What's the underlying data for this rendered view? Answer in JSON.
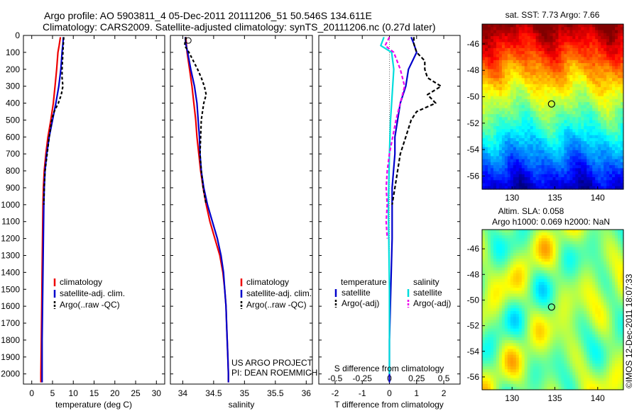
{
  "header": {
    "line1": "Argo profile: AO 5903811_4 05-Dec-2011 20111206_51 50.546S 134.611E",
    "line2": "Climatology: CARS2009. Satellite-adjusted climatology: synTS_20111206.nc (0.27d later)"
  },
  "credits": {
    "project": "US ARGO PROJECT",
    "pi": "PI: DEAN ROEMMICH",
    "stamp": "©IMOS 12-Dec-2011 18:07:33"
  },
  "colors": {
    "climatology": "#ee0000",
    "satellite": "#0000cc",
    "argo": "#000000",
    "salinity_sat": "#00dddd",
    "salinity_argo": "#ee00ee"
  },
  "chart_data": [
    {
      "type": "line",
      "name": "temperature-profile",
      "xlabel": "temperature (deg C)",
      "xlim": [
        -2,
        32
      ],
      "ylim": [
        2060,
        0
      ],
      "xticks": [
        0,
        5,
        10,
        15,
        20,
        25,
        30
      ],
      "yticks": [
        0,
        100,
        200,
        300,
        400,
        500,
        600,
        700,
        800,
        900,
        1000,
        1100,
        1200,
        1300,
        1400,
        1500,
        1600,
        1700,
        1800,
        1900,
        2000
      ],
      "legend": [
        "climatology",
        "satellite-adj. clim.",
        "Argo(..raw -QC)"
      ],
      "series": [
        {
          "name": "climatology",
          "color": "#ee0000",
          "dash": "",
          "points": [
            [
              6.9,
              10
            ],
            [
              6.6,
              60
            ],
            [
              6.3,
              100
            ],
            [
              6.0,
              200
            ],
            [
              5.6,
              300
            ],
            [
              5.2,
              400
            ],
            [
              4.6,
              500
            ],
            [
              3.9,
              600
            ],
            [
              3.4,
              700
            ],
            [
              3.0,
              800
            ],
            [
              2.8,
              900
            ],
            [
              2.7,
              1000
            ],
            [
              2.6,
              1200
            ],
            [
              2.5,
              1400
            ],
            [
              2.4,
              1600
            ],
            [
              2.3,
              1800
            ],
            [
              2.2,
              2000
            ],
            [
              2.2,
              2050
            ]
          ]
        },
        {
          "name": "satellite-adj. clim.",
          "color": "#0000cc",
          "dash": "",
          "points": [
            [
              7.6,
              10
            ],
            [
              7.5,
              50
            ],
            [
              7.3,
              100
            ],
            [
              7.0,
              200
            ],
            [
              6.5,
              300
            ],
            [
              5.8,
              400
            ],
            [
              5.0,
              500
            ],
            [
              4.2,
              600
            ],
            [
              3.6,
              700
            ],
            [
              3.2,
              800
            ],
            [
              3.0,
              900
            ],
            [
              2.9,
              1000
            ],
            [
              2.8,
              1200
            ],
            [
              2.7,
              1400
            ],
            [
              2.6,
              1600
            ],
            [
              2.5,
              1800
            ],
            [
              2.5,
              2000
            ],
            [
              2.5,
              2050
            ]
          ]
        },
        {
          "name": "Argo(..raw -QC)",
          "color": "#000000",
          "dash": "4 3",
          "points": [
            [
              7.7,
              10
            ],
            [
              7.6,
              50
            ],
            [
              7.5,
              100
            ],
            [
              7.4,
              150
            ],
            [
              7.3,
              200
            ],
            [
              7.3,
              250
            ],
            [
              7.5,
              300
            ],
            [
              7.1,
              350
            ],
            [
              6.4,
              400
            ],
            [
              5.4,
              450
            ],
            [
              4.8,
              500
            ],
            [
              4.2,
              600
            ],
            [
              3.7,
              700
            ],
            [
              3.2,
              800
            ],
            [
              3.0,
              900
            ],
            [
              2.9,
              1000
            ]
          ]
        }
      ]
    },
    {
      "type": "line",
      "name": "salinity-profile",
      "xlabel": "salinity",
      "xlim": [
        33.8,
        36.1
      ],
      "ylim": [
        2060,
        0
      ],
      "xticks": [
        34,
        34.5,
        35,
        35.5,
        36
      ],
      "legend": [
        "climatology",
        "satellite-adj. clim.",
        "Argo(..raw -QC)"
      ],
      "series": [
        {
          "name": "climatology",
          "color": "#ee0000",
          "dash": "",
          "points": [
            [
              34.05,
              10
            ],
            [
              34.07,
              100
            ],
            [
              34.11,
              200
            ],
            [
              34.15,
              300
            ],
            [
              34.18,
              400
            ],
            [
              34.21,
              500
            ],
            [
              34.23,
              600
            ],
            [
              34.26,
              700
            ],
            [
              34.29,
              800
            ],
            [
              34.33,
              900
            ],
            [
              34.38,
              1000
            ],
            [
              34.44,
              1100
            ],
            [
              34.52,
              1200
            ],
            [
              34.6,
              1300
            ],
            [
              34.65,
              1400
            ],
            [
              34.68,
              1500
            ],
            [
              34.7,
              1600
            ],
            [
              34.71,
              1700
            ],
            [
              34.72,
              1800
            ],
            [
              34.73,
              1900
            ],
            [
              34.74,
              2000
            ],
            [
              34.74,
              2050
            ]
          ]
        },
        {
          "name": "satellite-adj. clim.",
          "color": "#0000cc",
          "dash": "",
          "points": [
            [
              34.04,
              10
            ],
            [
              34.05,
              50
            ],
            [
              34.08,
              100
            ],
            [
              34.13,
              200
            ],
            [
              34.19,
              300
            ],
            [
              34.23,
              400
            ],
            [
              34.25,
              500
            ],
            [
              34.27,
              600
            ],
            [
              34.28,
              700
            ],
            [
              34.3,
              800
            ],
            [
              34.34,
              900
            ],
            [
              34.4,
              1000
            ],
            [
              34.48,
              1100
            ],
            [
              34.56,
              1200
            ],
            [
              34.62,
              1300
            ],
            [
              34.66,
              1400
            ],
            [
              34.68,
              1500
            ],
            [
              34.7,
              1600
            ],
            [
              34.71,
              1700
            ],
            [
              34.72,
              1800
            ],
            [
              34.73,
              1900
            ],
            [
              34.74,
              2000
            ],
            [
              34.74,
              2050
            ]
          ]
        },
        {
          "name": "Argo(..raw -QC)",
          "color": "#000000",
          "dash": "4 3",
          "points": [
            [
              34.05,
              10
            ],
            [
              34.03,
              60
            ],
            [
              34.1,
              100
            ],
            [
              34.17,
              150
            ],
            [
              34.24,
              200
            ],
            [
              34.3,
              250
            ],
            [
              34.35,
              300
            ],
            [
              34.38,
              350
            ],
            [
              34.34,
              400
            ],
            [
              34.32,
              450
            ],
            [
              34.3,
              500
            ],
            [
              34.29,
              600
            ],
            [
              34.28,
              700
            ],
            [
              34.3,
              800
            ],
            [
              34.33,
              900
            ],
            [
              34.38,
              1000
            ]
          ]
        }
      ],
      "annotations": [
        {
          "name": "start-marker",
          "x": 34.09,
          "y": 30
        }
      ]
    },
    {
      "type": "line",
      "name": "difference-profile",
      "xlabel": "T difference from climatology",
      "x2label": "S difference from climatology",
      "xlim": [
        -2.6,
        2.6
      ],
      "ylim": [
        2060,
        0
      ],
      "xticks": [
        -2,
        -1,
        0,
        1,
        2
      ],
      "x2ticks": [
        -0.5,
        -0.25,
        0,
        0.25,
        0.5
      ],
      "x2tick_labels": [
        "-0.5",
        "-0.25",
        "0",
        "0.25",
        "0.5"
      ],
      "legend_groups": [
        {
          "title": "temperature",
          "items": [
            "satellite",
            "Argo(-adj)"
          ]
        },
        {
          "title": "salinity",
          "items": [
            "satellite",
            "Argo(-adj)"
          ]
        }
      ],
      "series": [
        {
          "name": "temperature satellite",
          "color": "#0000cc",
          "dash": "",
          "points": [
            [
              0.8,
              10
            ],
            [
              0.9,
              50
            ],
            [
              1.0,
              100
            ],
            [
              0.7,
              200
            ],
            [
              0.6,
              300
            ],
            [
              0.4,
              400
            ],
            [
              0.3,
              500
            ],
            [
              0.2,
              600
            ],
            [
              0.2,
              700
            ],
            [
              0.1,
              900
            ],
            [
              0.1,
              1200
            ],
            [
              0.05,
              1500
            ],
            [
              0.0,
              1800
            ],
            [
              0.0,
              2050
            ]
          ]
        },
        {
          "name": "temperature Argo(-adj)",
          "color": "#000000",
          "dash": "5 3",
          "points": [
            [
              0.9,
              10
            ],
            [
              0.9,
              50
            ],
            [
              1.0,
              100
            ],
            [
              1.3,
              150
            ],
            [
              1.3,
              200
            ],
            [
              1.4,
              250
            ],
            [
              1.9,
              300
            ],
            [
              1.4,
              350
            ],
            [
              1.7,
              400
            ],
            [
              1.0,
              450
            ],
            [
              0.8,
              500
            ],
            [
              0.6,
              600
            ],
            [
              0.4,
              700
            ],
            [
              0.3,
              800
            ],
            [
              0.2,
              900
            ],
            [
              0.1,
              1000
            ]
          ]
        },
        {
          "name": "salinity satellite",
          "color": "#00dddd",
          "dash": "",
          "points": [
            [
              -0.05,
              10
            ],
            [
              -0.08,
              60
            ],
            [
              0.02,
              100
            ],
            [
              0.04,
              200
            ],
            [
              0.03,
              300
            ],
            [
              0.02,
              400
            ],
            [
              0.01,
              500
            ],
            [
              0.0,
              700
            ],
            [
              -0.01,
              1000
            ],
            [
              0.0,
              1500
            ],
            [
              0.0,
              2000
            ]
          ]
        },
        {
          "name": "salinity Argo(-adj)",
          "color": "#ee00ee",
          "dash": "5 3",
          "points": [
            [
              0.0,
              10
            ],
            [
              -0.04,
              60
            ],
            [
              0.04,
              100
            ],
            [
              0.1,
              200
            ],
            [
              0.14,
              300
            ],
            [
              0.1,
              400
            ],
            [
              0.06,
              500
            ],
            [
              0.03,
              600
            ],
            [
              0.0,
              700
            ],
            [
              -0.02,
              800
            ],
            [
              -0.03,
              900
            ],
            [
              -0.02,
              1000
            ],
            [
              -0.03,
              1100
            ],
            [
              -0.02,
              1200
            ]
          ]
        }
      ]
    },
    {
      "type": "heatmap",
      "name": "sst-map",
      "title": "sat. SST: 7.73 Argo: 7.66",
      "xlim": [
        126.5,
        143
      ],
      "ylim": [
        -57,
        -44.5
      ],
      "xticks": [
        130,
        135,
        140
      ],
      "yticks": [
        -46,
        -48,
        -50,
        -52,
        -54,
        -56
      ],
      "marker": {
        "lon": 134.611,
        "lat": -50.546
      }
    },
    {
      "type": "heatmap",
      "name": "sla-map",
      "title": "Altim. SLA: 0.058",
      "subtitle": "Argo h1000: 0.069 h2000: NaN",
      "xlim": [
        126.5,
        143
      ],
      "ylim": [
        -57,
        -44.5
      ],
      "xticks": [
        130,
        135,
        140
      ],
      "yticks": [
        -46,
        -48,
        -50,
        -52,
        -54,
        -56
      ],
      "marker": {
        "lon": 134.611,
        "lat": -50.546
      }
    }
  ]
}
